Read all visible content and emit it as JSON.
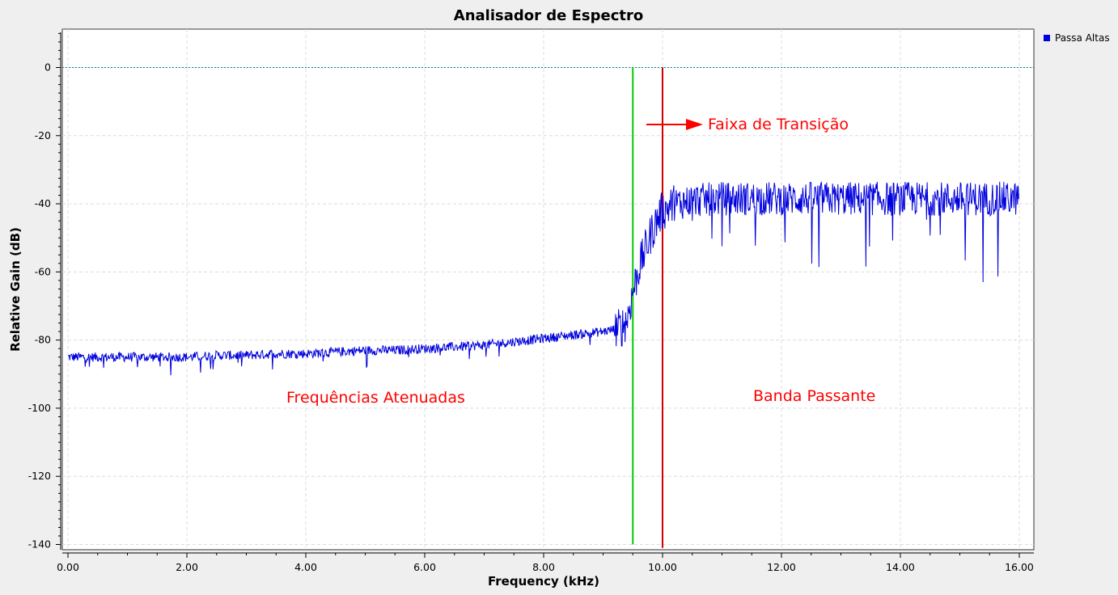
{
  "chart_data": {
    "type": "line",
    "title": "Analisador de Espectro",
    "xlabel": "Frequency (kHz)",
    "ylabel": "Relative Gain (dB)",
    "xlim": [
      0,
      16.3
    ],
    "ylim": [
      -140,
      11
    ],
    "x_ticks": [
      0,
      2,
      4,
      6,
      8,
      10,
      12,
      14,
      16
    ],
    "x_tick_labels": [
      "0.00",
      "2.00",
      "4.00",
      "6.00",
      "8.00",
      "10.00",
      "12.00",
      "14.00",
      "16.00"
    ],
    "y_ticks": [
      0,
      -20,
      -40,
      -60,
      -80,
      -100,
      -120,
      -140
    ],
    "y_tick_labels": [
      "0",
      "-20",
      "-40",
      "-60",
      "-80",
      "-100",
      "-120",
      "-140"
    ],
    "grid": true,
    "legend_position": "top-right",
    "series": [
      {
        "name": "Passa Altas",
        "color": "#0000dd",
        "x": [
          0.0,
          0.5,
          1.0,
          1.5,
          2.0,
          2.5,
          3.0,
          3.5,
          4.0,
          4.5,
          5.0,
          5.5,
          6.0,
          6.5,
          7.0,
          7.5,
          8.0,
          8.5,
          9.0,
          9.3,
          9.4,
          9.5,
          9.6,
          9.7,
          9.8,
          9.9,
          10.0,
          10.2,
          10.5,
          11.0,
          11.5,
          12.0,
          12.5,
          13.0,
          13.5,
          14.0,
          14.5,
          15.0,
          15.5,
          16.0
        ],
        "y": [
          -85,
          -85,
          -85,
          -85,
          -85,
          -84.5,
          -84.5,
          -84,
          -84,
          -83.5,
          -83,
          -83,
          -82.5,
          -82,
          -81.5,
          -80.5,
          -79.5,
          -78.5,
          -77.5,
          -76.5,
          -74,
          -66,
          -59,
          -54,
          -49,
          -45,
          -42,
          -40,
          -39,
          -38.5,
          -38.5,
          -38.5,
          -38.5,
          -38.5,
          -38.5,
          -38.5,
          -38.5,
          -38.5,
          -38.5,
          -38.5
        ]
      }
    ],
    "reference_lines": [
      {
        "orientation": "horizontal",
        "value": 0,
        "color": "#008b8b",
        "style": "dotted"
      },
      {
        "orientation": "vertical",
        "value": 9.5,
        "color": "#00cc00",
        "from": 0,
        "to": -140
      },
      {
        "orientation": "vertical",
        "value": 10.0,
        "color": "#cc0000",
        "from": 0,
        "to": -141
      }
    ],
    "annotations": [
      {
        "text": "Faixa de Transição",
        "color": "#ff0000",
        "arrow": true
      },
      {
        "text": "Frequências Atenuadas",
        "color": "#ff0000"
      },
      {
        "text": "Banda Passante",
        "color": "#ff0000"
      }
    ]
  }
}
